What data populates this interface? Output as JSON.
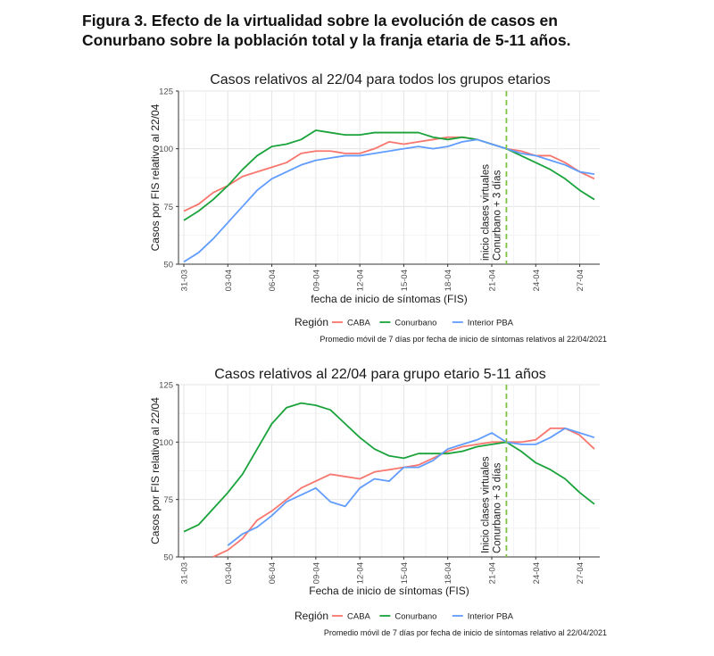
{
  "figure": {
    "title_line1": "Figura 3. Efecto de la virtualidad sobre la evolución de casos en",
    "title_line2": "Conurbano sobre la población total y la franja etaria de 5-11 años."
  },
  "chart_data": [
    {
      "type": "line",
      "title": "Casos relativos al 22/04 para todos los grupos etarios",
      "xlabel": "fecha de inicio de síntomas (FIS)",
      "ylabel": "Casos por FIS relativo al 22/04",
      "x": [
        "31-03",
        "01-04",
        "02-04",
        "03-04",
        "04-04",
        "05-04",
        "06-04",
        "07-04",
        "08-04",
        "09-04",
        "10-04",
        "11-04",
        "12-04",
        "13-04",
        "14-04",
        "15-04",
        "16-04",
        "17-04",
        "18-04",
        "19-04",
        "20-04",
        "21-04",
        "22-04",
        "23-04",
        "24-04",
        "25-04",
        "26-04",
        "27-04",
        "28-04"
      ],
      "x_ticks": [
        "31-03",
        "03-04",
        "06-04",
        "09-04",
        "12-04",
        "15-04",
        "18-04",
        "21-04",
        "24-04",
        "27-04"
      ],
      "ylim": [
        50,
        125
      ],
      "y_ticks": [
        50,
        75,
        100,
        125
      ],
      "grid": true,
      "series": [
        {
          "name": "CABA",
          "color": "#F8766D",
          "values": [
            73,
            76,
            81,
            84,
            88,
            90,
            92,
            94,
            98,
            99,
            99,
            98,
            98,
            100,
            103,
            102,
            103,
            104,
            105,
            105,
            104,
            102,
            100,
            99,
            97,
            97,
            94,
            90,
            87
          ]
        },
        {
          "name": "Conurbano",
          "color": "#1AA33B",
          "values": [
            69,
            73,
            78,
            84,
            91,
            97,
            101,
            102,
            104,
            108,
            107,
            106,
            106,
            107,
            107,
            107,
            107,
            105,
            104,
            105,
            104,
            102,
            100,
            97,
            94,
            91,
            87,
            82,
            78
          ]
        },
        {
          "name": "Interior PBA",
          "color": "#619CFF",
          "values": [
            51,
            55,
            61,
            68,
            75,
            82,
            87,
            90,
            93,
            95,
            96,
            97,
            97,
            98,
            99,
            100,
            101,
            100,
            101,
            103,
            104,
            102,
            100,
            98,
            97,
            95,
            93,
            90,
            89
          ]
        }
      ],
      "vline": {
        "x": "22-04",
        "label_line1": "inicio clases virtuales",
        "label_line2": "Conurbano + 3 días",
        "color": "#7DC242"
      },
      "legend": {
        "title": "Región",
        "position": "bottom"
      },
      "caption": "Promedio móvil de 7 días por fecha de inicio de síntomas relativos al 22/04/2021"
    },
    {
      "type": "line",
      "title": "Casos relativos al 22/04 para grupo etario 5-11 años",
      "xlabel": "Fecha de inicio de síntomas (FIS)",
      "ylabel": "Casos por FIS relativo al 22/04",
      "x": [
        "31-03",
        "01-04",
        "02-04",
        "03-04",
        "04-04",
        "05-04",
        "06-04",
        "07-04",
        "08-04",
        "09-04",
        "10-04",
        "11-04",
        "12-04",
        "13-04",
        "14-04",
        "15-04",
        "16-04",
        "17-04",
        "18-04",
        "19-04",
        "20-04",
        "21-04",
        "22-04",
        "23-04",
        "24-04",
        "25-04",
        "26-04",
        "27-04",
        "28-04"
      ],
      "x_ticks": [
        "31-03",
        "03-04",
        "06-04",
        "09-04",
        "12-04",
        "15-04",
        "18-04",
        "21-04",
        "24-04",
        "27-04"
      ],
      "ylim": [
        50,
        125
      ],
      "y_ticks": [
        50,
        75,
        100,
        125
      ],
      "grid": true,
      "series": [
        {
          "name": "CABA",
          "color": "#F8766D",
          "values": [
            null,
            null,
            50,
            53,
            58,
            66,
            70,
            75,
            80,
            83,
            86,
            85,
            84,
            87,
            88,
            89,
            90,
            93,
            96,
            98,
            99,
            100,
            100,
            100,
            101,
            106,
            106,
            103,
            97
          ]
        },
        {
          "name": "Conurbano",
          "color": "#1AA33B",
          "values": [
            61,
            64,
            71,
            78,
            86,
            97,
            108,
            115,
            117,
            116,
            114,
            108,
            102,
            97,
            94,
            93,
            95,
            95,
            95,
            96,
            98,
            99,
            100,
            96,
            91,
            88,
            84,
            78,
            73
          ]
        },
        {
          "name": "Interior PBA",
          "color": "#619CFF",
          "values": [
            null,
            null,
            null,
            55,
            60,
            63,
            68,
            74,
            77,
            80,
            74,
            72,
            80,
            84,
            83,
            89,
            89,
            92,
            97,
            99,
            101,
            104,
            100,
            99,
            99,
            102,
            106,
            104,
            102
          ]
        }
      ],
      "vline": {
        "x": "22-04",
        "label_line1": "Inicio clases virtuales",
        "label_line2": "Conurbano + 3 días",
        "color": "#7DC242"
      },
      "legend": {
        "title": "Región",
        "position": "bottom"
      },
      "caption": "Promedio móvil de 7 días por fecha de inicio de síntomas relativo al 22/04/2021"
    }
  ]
}
